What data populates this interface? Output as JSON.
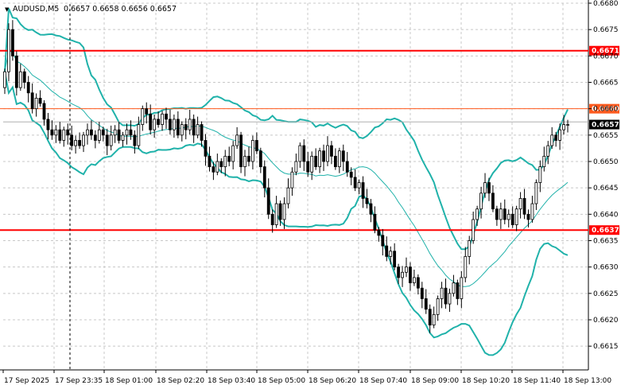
{
  "header": {
    "symbol": "AUDUSD,M5",
    "values": "0.6657 0.6658 0.6656 0.6657",
    "arrow": "▼"
  },
  "colors": {
    "background": "#ffffff",
    "grid": "#c8c8c8",
    "bull": "#ffffff",
    "bear": "#000000",
    "candle_outline": "#000000",
    "bollinger": "#20b2aa",
    "strong_level": "#ff0000",
    "weak_level": "#ff5a1e",
    "ask_line": "#b0b0b0",
    "current_label_bg": "#000000"
  },
  "chart_data": {
    "type": "candlestick",
    "instrument": "AUDUSD",
    "timeframe": "M5",
    "ylim": [
      0.66105,
      0.668
    ],
    "y_ticks": [
      "0.6680",
      "0.6675",
      "0.6670",
      "0.6665",
      "0.6660",
      "0.6655",
      "0.6650",
      "0.6645",
      "0.6640",
      "0.6635",
      "0.6630",
      "0.6625",
      "0.6620",
      "0.6615"
    ],
    "x_ticks": [
      "17 Sep 2025",
      "17 Sep 23:35",
      "18 Sep 01:00",
      "18 Sep 02:20",
      "18 Sep 03:40",
      "18 Sep 05:00",
      "18 Sep 06:20",
      "18 Sep 07:40",
      "18 Sep 09:00",
      "18 Sep 10:20",
      "18 Sep 11:40",
      "18 Sep 13:00"
    ],
    "levels": [
      {
        "value": 0.6671,
        "label": "0.6671",
        "style": "strong"
      },
      {
        "value": 0.666,
        "label": "0.6660",
        "style": "weak"
      },
      {
        "value": 0.6637,
        "label": "0.6637",
        "style": "strong"
      }
    ],
    "current_price": {
      "value": 0.6657,
      "label": "0.6657"
    },
    "ask_price": 0.66575,
    "closes": [
      0.6667,
      0.6675,
      0.667,
      0.6664,
      0.6667,
      0.6665,
      0.6663,
      0.666,
      0.6662,
      0.6661,
      0.6658,
      0.6656,
      0.6655,
      0.6656,
      0.6654,
      0.6656,
      0.6655,
      0.6653,
      0.6654,
      0.6653,
      0.6655,
      0.6656,
      0.6655,
      0.6654,
      0.6656,
      0.6655,
      0.6653,
      0.6655,
      0.6656,
      0.6654,
      0.6655,
      0.6656,
      0.6655,
      0.6653,
      0.6657,
      0.666,
      0.6659,
      0.6656,
      0.6658,
      0.6657,
      0.6659,
      0.6658,
      0.6656,
      0.6658,
      0.6655,
      0.6657,
      0.6656,
      0.6658,
      0.6655,
      0.6657,
      0.6654,
      0.6651,
      0.6649,
      0.6648,
      0.665,
      0.6649,
      0.6651,
      0.665,
      0.6653,
      0.6655,
      0.6649,
      0.6651,
      0.665,
      0.6654,
      0.6652,
      0.6649,
      0.6645,
      0.664,
      0.6638,
      0.6642,
      0.6639,
      0.6642,
      0.6645,
      0.6648,
      0.665,
      0.6653,
      0.665,
      0.6648,
      0.6651,
      0.6649,
      0.6652,
      0.665,
      0.6653,
      0.6651,
      0.6649,
      0.6652,
      0.665,
      0.6648,
      0.6647,
      0.6645,
      0.6646,
      0.6643,
      0.6642,
      0.664,
      0.6637,
      0.6636,
      0.6634,
      0.6632,
      0.6633,
      0.663,
      0.6628,
      0.6629,
      0.663,
      0.6627,
      0.6628,
      0.6626,
      0.6624,
      0.6622,
      0.6619,
      0.6621,
      0.6624,
      0.6626,
      0.6623,
      0.6625,
      0.6627,
      0.6624,
      0.6628,
      0.6632,
      0.6635,
      0.6639,
      0.6641,
      0.6644,
      0.6646,
      0.6644,
      0.6641,
      0.6639,
      0.6641,
      0.6639,
      0.664,
      0.6638,
      0.6641,
      0.6643,
      0.664,
      0.6639,
      0.6642,
      0.6646,
      0.6649,
      0.6651,
      0.6653,
      0.6655,
      0.6654,
      0.6656,
      0.6657,
      0.6657
    ]
  }
}
